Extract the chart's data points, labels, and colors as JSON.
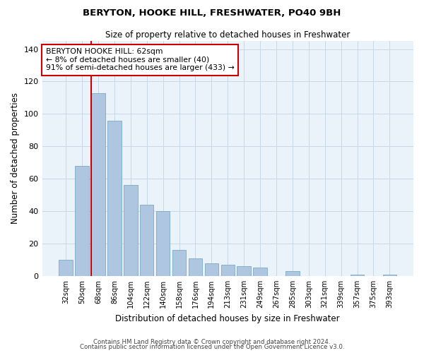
{
  "title1": "BERYTON, HOOKE HILL, FRESHWATER, PO40 9BH",
  "title2": "Size of property relative to detached houses in Freshwater",
  "xlabel": "Distribution of detached houses by size in Freshwater",
  "ylabel": "Number of detached properties",
  "categories": [
    "32sqm",
    "50sqm",
    "68sqm",
    "86sqm",
    "104sqm",
    "122sqm",
    "140sqm",
    "158sqm",
    "176sqm",
    "194sqm",
    "213sqm",
    "231sqm",
    "249sqm",
    "267sqm",
    "285sqm",
    "303sqm",
    "321sqm",
    "339sqm",
    "357sqm",
    "375sqm",
    "393sqm"
  ],
  "values": [
    10,
    68,
    113,
    96,
    56,
    44,
    40,
    16,
    11,
    8,
    7,
    6,
    5,
    0,
    3,
    0,
    0,
    0,
    1,
    0,
    1
  ],
  "bar_color": "#aec6df",
  "bar_edge_color": "#7aaac8",
  "vline_x_index": 2,
  "vline_color": "#cc0000",
  "annotation_text": "BERYTON HOOKE HILL: 62sqm\n← 8% of detached houses are smaller (40)\n91% of semi-detached houses are larger (433) →",
  "annotation_box_color": "#ffffff",
  "annotation_box_edge": "#cc0000",
  "ylim": [
    0,
    145
  ],
  "yticks": [
    0,
    20,
    40,
    60,
    80,
    100,
    120,
    140
  ],
  "grid_color": "#c8d8e8",
  "bg_color": "#eaf2fa",
  "footer1": "Contains HM Land Registry data © Crown copyright and database right 2024.",
  "footer2": "Contains public sector information licensed under the Open Government Licence v3.0."
}
